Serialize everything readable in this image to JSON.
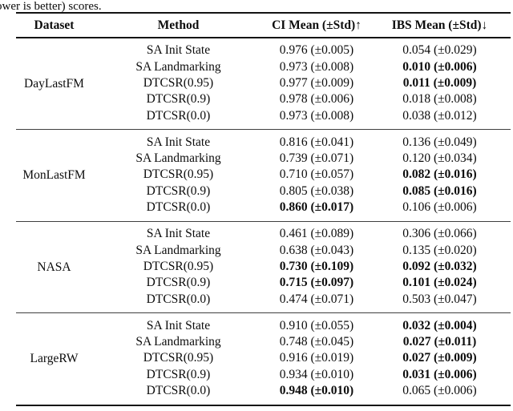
{
  "page": {
    "background": "#ffffff",
    "text_color": "#0c0c0c",
    "rule_color": "#131313",
    "group_separator_color": "#3f3f3f"
  },
  "caption_fragment": "ower is better) scores.",
  "table": {
    "headers": [
      {
        "label": "Dataset",
        "arrow": ""
      },
      {
        "label": "Method",
        "arrow": ""
      },
      {
        "label": "CI Mean (±Std)",
        "arrow": "↑"
      },
      {
        "label": "IBS Mean (±Std)",
        "arrow": "↓"
      }
    ],
    "groups": [
      {
        "dataset": "DayLastFM",
        "rows": [
          {
            "method": "SA Init State",
            "ci": "0.976 (±0.005)",
            "ci_bold": false,
            "ibs": "0.054 (±0.029)",
            "ibs_bold": false
          },
          {
            "method": "SA Landmarking",
            "ci": "0.973 (±0.008)",
            "ci_bold": false,
            "ibs": "0.010 (±0.006)",
            "ibs_bold": true
          },
          {
            "method": "DTCSR(0.95)",
            "ci": "0.977 (±0.009)",
            "ci_bold": false,
            "ibs": "0.011 (±0.009)",
            "ibs_bold": true
          },
          {
            "method": "DTCSR(0.9)",
            "ci": "0.978 (±0.006)",
            "ci_bold": false,
            "ibs": "0.018 (±0.008)",
            "ibs_bold": false
          },
          {
            "method": "DTCSR(0.0)",
            "ci": "0.973 (±0.008)",
            "ci_bold": false,
            "ibs": "0.038 (±0.012)",
            "ibs_bold": false
          }
        ]
      },
      {
        "dataset": "MonLastFM",
        "rows": [
          {
            "method": "SA Init State",
            "ci": "0.816 (±0.041)",
            "ci_bold": false,
            "ibs": "0.136 (±0.049)",
            "ibs_bold": false
          },
          {
            "method": "SA Landmarking",
            "ci": "0.739 (±0.071)",
            "ci_bold": false,
            "ibs": "0.120 (±0.034)",
            "ibs_bold": false
          },
          {
            "method": "DTCSR(0.95)",
            "ci": "0.710 (±0.057)",
            "ci_bold": false,
            "ibs": "0.082 (±0.016)",
            "ibs_bold": true
          },
          {
            "method": "DTCSR(0.9)",
            "ci": "0.805 (±0.038)",
            "ci_bold": false,
            "ibs": "0.085 (±0.016)",
            "ibs_bold": true
          },
          {
            "method": "DTCSR(0.0)",
            "ci": "0.860 (±0.017)",
            "ci_bold": true,
            "ibs": "0.106 (±0.006)",
            "ibs_bold": false
          }
        ]
      },
      {
        "dataset": "NASA",
        "rows": [
          {
            "method": "SA Init State",
            "ci": "0.461 (±0.089)",
            "ci_bold": false,
            "ibs": "0.306 (±0.066)",
            "ibs_bold": false
          },
          {
            "method": "SA Landmarking",
            "ci": "0.638 (±0.043)",
            "ci_bold": false,
            "ibs": "0.135 (±0.020)",
            "ibs_bold": false
          },
          {
            "method": "DTCSR(0.95)",
            "ci": "0.730 (±0.109)",
            "ci_bold": true,
            "ibs": "0.092 (±0.032)",
            "ibs_bold": true
          },
          {
            "method": "DTCSR(0.9)",
            "ci": "0.715 (±0.097)",
            "ci_bold": true,
            "ibs": "0.101 (±0.024)",
            "ibs_bold": true
          },
          {
            "method": "DTCSR(0.0)",
            "ci": "0.474 (±0.071)",
            "ci_bold": false,
            "ibs": "0.503 (±0.047)",
            "ibs_bold": false
          }
        ]
      },
      {
        "dataset": "LargeRW",
        "rows": [
          {
            "method": "SA Init State",
            "ci": "0.910 (±0.055)",
            "ci_bold": false,
            "ibs": "0.032 (±0.004)",
            "ibs_bold": true
          },
          {
            "method": "SA Landmarking",
            "ci": "0.748 (±0.045)",
            "ci_bold": false,
            "ibs": "0.027 (±0.011)",
            "ibs_bold": true
          },
          {
            "method": "DTCSR(0.95)",
            "ci": "0.916 (±0.019)",
            "ci_bold": false,
            "ibs": "0.027 (±0.009)",
            "ibs_bold": true
          },
          {
            "method": "DTCSR(0.9)",
            "ci": "0.934 (±0.010)",
            "ci_bold": false,
            "ibs": "0.031 (±0.006)",
            "ibs_bold": true
          },
          {
            "method": "DTCSR(0.0)",
            "ci": "0.948 (±0.010)",
            "ci_bold": true,
            "ibs": "0.065 (±0.006)",
            "ibs_bold": false
          }
        ]
      }
    ]
  }
}
